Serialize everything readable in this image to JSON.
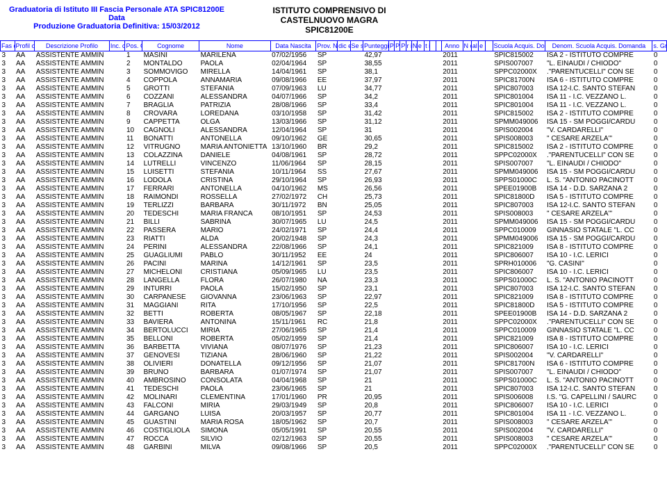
{
  "header": {
    "line1": "Graduatoria di Istituto III Fascia Personale ATA SPIC81200E Data",
    "line2": "Produzione Graduatoria Definitiva: 15/03/2012",
    "inst1": "ISTITUTO COMPRENSIVO DI",
    "inst2": "CASTELNUOVO MAGRA",
    "inst3": "SPIC81200E"
  },
  "cols": {
    "fascia": "Fas\ncia",
    "profilo": "Profil\no",
    "desc": "Descrizione Profilo",
    "inc": "Inc.\ncon\nRise\nrva",
    "pos": "Pos.\nGrad\nuatori\na",
    "cognome": "Cognome",
    "nome": "Nome",
    "nascita": "Data Nascita",
    "prov": "Prov.\nNascit\na",
    "dic": "dic\ne\nFis\ncal",
    "sesso": "Se\nss\no",
    "punt": "Punteggio",
    "pr1": "P\nr\ne\nf.\n1",
    "pr2": "P\nr\ne\nf.\n2",
    "pr3": "P\nr\ne\nf.\n3",
    "pr4": "r\ni\nf\nf.",
    "num": "N\nu\nm.\nFi\ngli",
    "et": "e\nr\nm.\na\nll",
    "ti": "t\ni\nt\nl\ne",
    "anno": "Anno",
    "nm": "N\no\nm\ne\ns",
    "al": "al\nR\nR",
    "er": "e\nr.\nR\nR",
    "scuola": "Scuola Acquis.\nDomanda",
    "denom": "Denom. Scuola Acquis.\nDomanda",
    "last": "s.\nGr\nad.\nPro"
  },
  "rows": [
    {
      "f": "3",
      "p": "AA",
      "d": "ASSISTENTE AMMIN",
      "pos": "1",
      "cog": "MASINI",
      "nom": "MARILENA",
      "nas": "07/02/1956",
      "pr": "SP",
      "pt": "42,97",
      "an": "2011",
      "sc": "SPIC815002",
      "de": "ISA 2 - ISTITUTO COMPRE",
      "x": "0"
    },
    {
      "f": "3",
      "p": "AA",
      "d": "ASSISTENTE AMMIN",
      "pos": "2",
      "cog": "MONTALDO",
      "nom": "PAOLA",
      "nas": "02/04/1964",
      "pr": "SP",
      "pt": "38,55",
      "an": "2011",
      "sc": "SPIS007007",
      "de": "\"L. EINAUDI / CHIODO\"",
      "x": "0"
    },
    {
      "f": "3",
      "p": "AA",
      "d": "ASSISTENTE AMMIN",
      "pos": "3",
      "cog": "SOMMOVIGO",
      "nom": "MIRELLA",
      "nas": "14/04/1961",
      "pr": "SP",
      "pt": "38,1",
      "an": "2011",
      "sc": "SPPC02000X",
      "de": ".\"PARENTUCELLI\" CON SE",
      "x": "0"
    },
    {
      "f": "3",
      "p": "AA",
      "d": "ASSISTENTE AMMIN",
      "pos": "4",
      "cog": "COPPOLA",
      "nom": "ANNAMARIA",
      "nas": "09/08/1966",
      "pr": "EE",
      "pt": "37,97",
      "an": "2011",
      "sc": "SPIC81700N",
      "de": "ISA 6 - ISTITUTO COMPRE",
      "x": "0"
    },
    {
      "f": "3",
      "p": "AA",
      "d": "ASSISTENTE AMMIN",
      "pos": "5",
      "cog": "GROTTI",
      "nom": "STEFANIA",
      "nas": "07/09/1963",
      "pr": "LU",
      "pt": "34,77",
      "an": "2011",
      "sc": "SPIC807003",
      "de": "ISA 12-I.C. SANTO STEFAN",
      "x": "0"
    },
    {
      "f": "3",
      "p": "AA",
      "d": "ASSISTENTE AMMIN",
      "pos": "6",
      "cog": "COZZANI",
      "nom": "ALESSANDRA",
      "nas": "04/07/1966",
      "pr": "SP",
      "pt": "34,2",
      "an": "2011",
      "sc": "SPIC801004",
      "de": "ISA 11 - I.C. VEZZANO L.",
      "x": "0"
    },
    {
      "f": "3",
      "p": "AA",
      "d": "ASSISTENTE AMMIN",
      "pos": "7",
      "cog": "BRAGLIA",
      "nom": "PATRIZIA",
      "nas": "28/08/1966",
      "pr": "SP",
      "pt": "33,4",
      "an": "2011",
      "sc": "SPIC801004",
      "de": "ISA 11 - I.C. VEZZANO L.",
      "x": "0"
    },
    {
      "f": "3",
      "p": "AA",
      "d": "ASSISTENTE AMMIN",
      "pos": "8",
      "cog": "CROVARA",
      "nom": "LOREDANA",
      "nas": "03/10/1958",
      "pr": "SP",
      "pt": "31,42",
      "an": "2011",
      "sc": "SPIC815002",
      "de": "ISA 2 - ISTITUTO COMPRE",
      "x": "0"
    },
    {
      "f": "3",
      "p": "AA",
      "d": "ASSISTENTE AMMIN",
      "pos": "9",
      "cog": "CAPPETTA",
      "nom": "OLGA",
      "nas": "13/03/1966",
      "pr": "SP",
      "pt": "31,12",
      "an": "2011",
      "sc": "SPMM049006",
      "de": "ISA 15 - SM POGGI/CARDU",
      "x": "0"
    },
    {
      "f": "3",
      "p": "AA",
      "d": "ASSISTENTE AMMIN",
      "pos": "10",
      "cog": "CAGNOLI",
      "nom": "ALESSANDRA",
      "nas": "12/04/1964",
      "pr": "SP",
      "pt": "31",
      "an": "2011",
      "sc": "SPIS002004",
      "de": "\"V. CARDARELLI\"",
      "x": "0"
    },
    {
      "f": "3",
      "p": "AA",
      "d": "ASSISTENTE AMMIN",
      "pos": "11",
      "cog": "BONATTI",
      "nom": "ANTONELLA",
      "nas": "09/10/1962",
      "pr": "GE",
      "pt": "30,65",
      "an": "2011",
      "sc": "SPIS008003",
      "de": "\" CESARE ARZELA'\"",
      "x": "0"
    },
    {
      "f": "3",
      "p": "AA",
      "d": "ASSISTENTE AMMIN",
      "pos": "12",
      "cog": "VITRUGNO",
      "nom": "MARIA ANTONIETTA",
      "nas": "13/10/1960",
      "pr": "BR",
      "pt": "29,2",
      "an": "2011",
      "sc": "SPIC815002",
      "de": "ISA 2 - ISTITUTO COMPRE",
      "x": "0"
    },
    {
      "f": "3",
      "p": "AA",
      "d": "ASSISTENTE AMMIN",
      "pos": "13",
      "cog": "COLAZZINA",
      "nom": "DANIELE",
      "nas": "04/08/1961",
      "pr": "SP",
      "pt": "28,72",
      "an": "2011",
      "sc": "SPPC02000X",
      "de": ".\"PARENTUCELLI\" CON SE",
      "x": "0"
    },
    {
      "f": "3",
      "p": "AA",
      "d": "ASSISTENTE AMMIN",
      "pos": "14",
      "cog": "LUTRELLI",
      "nom": "VINCENZO",
      "nas": "11/06/1964",
      "pr": "SP",
      "pt": "28,15",
      "an": "2011",
      "sc": "SPIS007007",
      "de": "\"L. EINAUDI / CHIODO\"",
      "x": "0"
    },
    {
      "f": "3",
      "p": "AA",
      "d": "ASSISTENTE AMMIN",
      "pos": "15",
      "cog": "LUISETTI",
      "nom": "STEFANIA",
      "nas": "10/11/1964",
      "pr": "SS",
      "pt": "27,67",
      "an": "2011",
      "sc": "SPMM049006",
      "de": "ISA 15 - SM POGGI/CARDU",
      "x": "0"
    },
    {
      "f": "3",
      "p": "AA",
      "d": "ASSISTENTE AMMIN",
      "pos": "16",
      "cog": "LODOLA",
      "nom": "CRISTINA",
      "nas": "29/10/1964",
      "pr": "SP",
      "pt": "26,93",
      "an": "2011",
      "sc": "SPPS01000C",
      "de": "L. S. \"ANTONIO PACINOTT",
      "x": "0"
    },
    {
      "f": "3",
      "p": "AA",
      "d": "ASSISTENTE AMMIN",
      "pos": "17",
      "cog": "FERRARI",
      "nom": "ANTONELLA",
      "nas": "04/10/1962",
      "pr": "MS",
      "pt": "26,56",
      "an": "2011",
      "sc": "SPEE01900B",
      "de": "ISA 14 - D.D. SARZANA 2",
      "x": "0"
    },
    {
      "f": "3",
      "p": "AA",
      "d": "ASSISTENTE AMMIN",
      "pos": "18",
      "cog": "RAIMONDI",
      "nom": "ROSSELLA",
      "nas": "27/02/1972",
      "pr": "CH",
      "pt": "25,73",
      "an": "2011",
      "sc": "SPIC81800D",
      "de": "ISA 5 - ISTITUTO COMPRE",
      "x": "0"
    },
    {
      "f": "3",
      "p": "AA",
      "d": "ASSISTENTE AMMIN",
      "pos": "19",
      "cog": "TERLIZZI",
      "nom": "BARBARA",
      "nas": "30/11/1972",
      "pr": "BN",
      "pt": "25,05",
      "an": "2011",
      "sc": "SPIC807003",
      "de": "ISA 12-I.C. SANTO STEFAN",
      "x": "0"
    },
    {
      "f": "3",
      "p": "AA",
      "d": "ASSISTENTE AMMIN",
      "pos": "20",
      "cog": "TEDESCHI",
      "nom": "MARIA FRANCA",
      "nas": "08/10/1951",
      "pr": "SP",
      "pt": "24,53",
      "an": "2011",
      "sc": "SPIS008003",
      "de": "\" CESARE ARZELA'\"",
      "x": "0"
    },
    {
      "f": "3",
      "p": "AA",
      "d": "ASSISTENTE AMMIN",
      "pos": "21",
      "cog": "BILLI",
      "nom": "SABRINA",
      "nas": "30/07/1965",
      "pr": "LU",
      "pt": "24,5",
      "an": "2011",
      "sc": "SPMM049006",
      "de": "ISA 15 - SM POGGI/CARDU",
      "x": "0"
    },
    {
      "f": "3",
      "p": "AA",
      "d": "ASSISTENTE AMMIN",
      "pos": "22",
      "cog": "PASSERA",
      "nom": "MARIO",
      "nas": "24/02/1971",
      "pr": "SP",
      "pt": "24,4",
      "an": "2011",
      "sc": "SPPC010009",
      "de": "GINNASIO STATALE \"L. CC",
      "x": "0"
    },
    {
      "f": "3",
      "p": "AA",
      "d": "ASSISTENTE AMMIN",
      "pos": "23",
      "cog": "RIATTI",
      "nom": "ALDA",
      "nas": "20/02/1948",
      "pr": "SP",
      "pt": "24,3",
      "an": "2011",
      "sc": "SPMM049006",
      "de": "ISA 15 - SM POGGI/CARDU",
      "x": "0"
    },
    {
      "f": "3",
      "p": "AA",
      "d": "ASSISTENTE AMMIN",
      "pos": "24",
      "cog": "PERINI",
      "nom": "ALESSANDRA",
      "nas": "22/08/1966",
      "pr": "SP",
      "pt": "24,1",
      "an": "2011",
      "sc": "SPIC821009",
      "de": "ISA 8 - ISTITUTO COMPRE",
      "x": "0"
    },
    {
      "f": "3",
      "p": "AA",
      "d": "ASSISTENTE AMMIN",
      "pos": "25",
      "cog": "GUAGLIUMI",
      "nom": "PABLO",
      "nas": "30/11/1952",
      "pr": "EE",
      "pt": "24",
      "an": "2011",
      "sc": "SPIC806007",
      "de": "ISA 10 - I.C.  LERICI",
      "x": "0"
    },
    {
      "f": "3",
      "p": "AA",
      "d": "ASSISTENTE AMMIN",
      "pos": "26",
      "cog": "PACINI",
      "nom": "MARINA",
      "nas": "14/12/1961",
      "pr": "SP",
      "pt": "23,5",
      "an": "2011",
      "sc": "SPRH010006",
      "de": "\"G. CASINI\"",
      "x": "0"
    },
    {
      "f": "3",
      "p": "AA",
      "d": "ASSISTENTE AMMIN",
      "pos": "27",
      "cog": "MICHELONI",
      "nom": "CRISTIANA",
      "nas": "05/09/1965",
      "pr": "LU",
      "pt": "23,5",
      "an": "2011",
      "sc": "SPIC806007",
      "de": "ISA 10 - I.C.  LERICI",
      "x": "0"
    },
    {
      "f": "3",
      "p": "AA",
      "d": "ASSISTENTE AMMIN",
      "pos": "28",
      "cog": "LANGELLA",
      "nom": "FLORA",
      "nas": "26/07/1980",
      "pr": "NA",
      "pt": "23,3",
      "an": "2011",
      "sc": "SPPS01000C",
      "de": "L. S. \"ANTONIO PACINOTT",
      "x": "0"
    },
    {
      "f": "3",
      "p": "AA",
      "d": "ASSISTENTE AMMIN",
      "pos": "29",
      "cog": "INTURRI",
      "nom": "PAOLA",
      "nas": "15/02/1950",
      "pr": "SP",
      "pt": "23,1",
      "an": "2011",
      "sc": "SPIC807003",
      "de": "ISA 12-I.C. SANTO STEFAN",
      "x": "0"
    },
    {
      "f": "3",
      "p": "AA",
      "d": "ASSISTENTE AMMIN",
      "pos": "30",
      "cog": "CARPANESE",
      "nom": "GIOVANNA",
      "nas": "23/06/1963",
      "pr": "SP",
      "pt": "22,97",
      "an": "2011",
      "sc": "SPIC821009",
      "de": "ISA 8 - ISTITUTO COMPRE",
      "x": "0"
    },
    {
      "f": "3",
      "p": "AA",
      "d": "ASSISTENTE AMMIN",
      "pos": "31",
      "cog": "MAGGIANI",
      "nom": "RITA",
      "nas": "17/10/1956",
      "pr": "SP",
      "pt": "22,5",
      "an": "2011",
      "sc": "SPIC81800D",
      "de": "ISA 5 - ISTITUTO COMPRE",
      "x": "0"
    },
    {
      "f": "3",
      "p": "AA",
      "d": "ASSISTENTE AMMIN",
      "pos": "32",
      "cog": "BETTI",
      "nom": "ROBERTA",
      "nas": "08/05/1967",
      "pr": "SP",
      "pt": "22,18",
      "an": "2011",
      "sc": "SPEE01900B",
      "de": "ISA 14 - D.D. SARZANA 2",
      "x": "0"
    },
    {
      "f": "3",
      "p": "AA",
      "d": "ASSISTENTE AMMIN",
      "pos": "33",
      "cog": "BAVIERA",
      "nom": "ANTONINA",
      "nas": "15/11/1961",
      "pr": "RC",
      "pt": "21,8",
      "an": "2011",
      "sc": "SPPC02000X",
      "de": ".\"PARENTUCELLI\" CON SE",
      "x": "0"
    },
    {
      "f": "3",
      "p": "AA",
      "d": "ASSISTENTE AMMIN",
      "pos": "34",
      "cog": "BERTOLUCCI",
      "nom": "MIRIA",
      "nas": "27/06/1965",
      "pr": "SP",
      "pt": "21,4",
      "an": "2011",
      "sc": "SPPC010009",
      "de": "GINNASIO STATALE \"L. CC",
      "x": "0"
    },
    {
      "f": "3",
      "p": "AA",
      "d": "ASSISTENTE AMMIN",
      "pos": "35",
      "cog": "BELLONI",
      "nom": "ROBERTA",
      "nas": "05/02/1959",
      "pr": "SP",
      "pt": "21,4",
      "an": "2011",
      "sc": "SPIC821009",
      "de": "ISA 8 - ISTITUTO COMPRE",
      "x": "0"
    },
    {
      "f": "3",
      "p": "AA",
      "d": "ASSISTENTE AMMIN",
      "pos": "36",
      "cog": "BARBETTA",
      "nom": "VIVIANA",
      "nas": "08/07/1976",
      "pr": "SP",
      "pt": "21,23",
      "an": "2011",
      "sc": "SPIC806007",
      "de": "ISA 10 - I.C.  LERICI",
      "x": "0"
    },
    {
      "f": "3",
      "p": "AA",
      "d": "ASSISTENTE AMMIN",
      "pos": "37",
      "cog": "GENOVESI",
      "nom": "TIZIANA",
      "nas": "28/06/1960",
      "pr": "SP",
      "pt": "21,22",
      "an": "2011",
      "sc": "SPIS002004",
      "de": "\"V. CARDARELLI\"",
      "x": "0"
    },
    {
      "f": "3",
      "p": "AA",
      "d": "ASSISTENTE AMMIN",
      "pos": "38",
      "cog": "OLIVIERI",
      "nom": "DONATELLA",
      "nas": "09/12/1956",
      "pr": "SP",
      "pt": "21,07",
      "an": "2011",
      "sc": "SPIC81700N",
      "de": "ISA 6 - ISTITUTO COMPRE",
      "x": "0"
    },
    {
      "f": "3",
      "p": "AA",
      "d": "ASSISTENTE AMMIN",
      "pos": "39",
      "cog": "BRUNO",
      "nom": "BARBARA",
      "nas": "01/07/1974",
      "pr": "SP",
      "pt": "21,07",
      "an": "2011",
      "sc": "SPIS007007",
      "de": "\"L. EINAUDI / CHIODO\"",
      "x": "0"
    },
    {
      "f": "3",
      "p": "AA",
      "d": "ASSISTENTE AMMIN",
      "pos": "40",
      "cog": "AMBROSINO",
      "nom": "CONSOLATA",
      "nas": "04/04/1968",
      "pr": "SP",
      "pt": "21",
      "an": "2011",
      "sc": "SPPS01000C",
      "de": "L. S. \"ANTONIO PACINOTT",
      "x": "0"
    },
    {
      "f": "3",
      "p": "AA",
      "d": "ASSISTENTE AMMIN",
      "pos": "41",
      "cog": "TEDESCHI",
      "nom": "PAOLA",
      "nas": "23/06/1965",
      "pr": "SP",
      "pt": "21",
      "an": "2011",
      "sc": "SPIC807003",
      "de": "ISA 12-I.C. SANTO STEFAN",
      "x": "0"
    },
    {
      "f": "3",
      "p": "AA",
      "d": "ASSISTENTE AMMIN",
      "pos": "42",
      "cog": "MOLINARI",
      "nom": "CLEMENTINA",
      "nas": "17/01/1960",
      "pr": "PR",
      "pt": "20,95",
      "an": "2011",
      "sc": "SPIS006008",
      "de": "I.S. \"G. CAPELLINI / SAURC",
      "x": "0"
    },
    {
      "f": "3",
      "p": "AA",
      "d": "ASSISTENTE AMMIN",
      "pos": "43",
      "cog": "FALCONI",
      "nom": "MIRIA",
      "nas": "29/03/1949",
      "pr": "SP",
      "pt": "20,8",
      "an": "2011",
      "sc": "SPIC806007",
      "de": "ISA 10 - I.C.  LERICI",
      "x": "0"
    },
    {
      "f": "3",
      "p": "AA",
      "d": "ASSISTENTE AMMIN",
      "pos": "44",
      "cog": "GARGANO",
      "nom": "LUISA",
      "nas": "20/03/1957",
      "pr": "SP",
      "pt": "20,77",
      "an": "2011",
      "sc": "SPIC801004",
      "de": "ISA 11 - I.C. VEZZANO L.",
      "x": "0"
    },
    {
      "f": "3",
      "p": "AA",
      "d": "ASSISTENTE AMMIN",
      "pos": "45",
      "cog": "GUASTINI",
      "nom": "MARIA ROSA",
      "nas": "18/05/1962",
      "pr": "SP",
      "pt": "20,7",
      "an": "2011",
      "sc": "SPIS008003",
      "de": "\" CESARE ARZELA'\"",
      "x": "0"
    },
    {
      "f": "3",
      "p": "AA",
      "d": "ASSISTENTE AMMIN",
      "pos": "46",
      "cog": "COSTIGLIOLA",
      "nom": "SIMONA",
      "nas": "05/05/1991",
      "pr": "SP",
      "pt": "20,55",
      "an": "2011",
      "sc": "SPIS002004",
      "de": "\"V. CARDARELLI\"",
      "x": "0"
    },
    {
      "f": "3",
      "p": "AA",
      "d": "ASSISTENTE AMMIN",
      "pos": "47",
      "cog": "ROCCA",
      "nom": "SILVIO",
      "nas": "02/12/1963",
      "pr": "SP",
      "pt": "20,55",
      "an": "2011",
      "sc": "SPIS008003",
      "de": "\" CESARE ARZELA'\"",
      "x": "0"
    },
    {
      "f": "3",
      "p": "AA",
      "d": "ASSISTENTE AMMIN",
      "pos": "48",
      "cog": "GARBINI",
      "nom": "MILVA",
      "nas": "09/08/1966",
      "pr": "SP",
      "pt": "20,5",
      "an": "2011",
      "sc": "SPPC02000X",
      "de": ".\"PARENTUCELLI\" CON SE",
      "x": "0"
    }
  ]
}
